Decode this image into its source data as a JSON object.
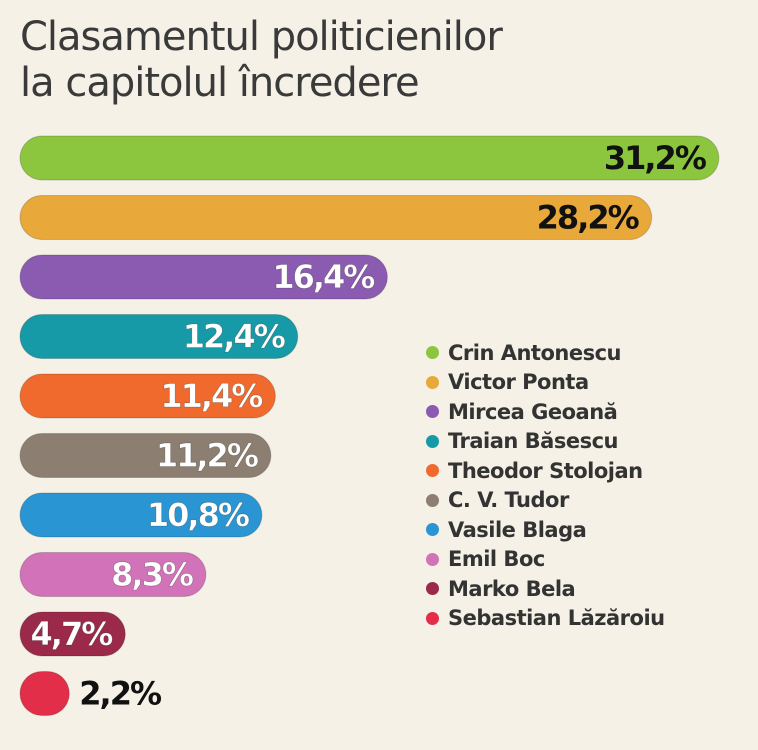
{
  "chart_data": {
    "type": "bar",
    "orientation": "horizontal",
    "title_lines": [
      "Clasamentul politicienilor",
      "la capitolul încredere"
    ],
    "categories": [
      "Crin Antonescu",
      "Victor Ponta",
      "Mircea Geoană",
      "Traian Băsescu",
      "Theodor Stolojan",
      "C. V. Tudor",
      "Vasile Blaga",
      "Emil Boc",
      "Marko Bela",
      "Sebastian Lăzăroiu"
    ],
    "values": [
      31.2,
      28.2,
      16.4,
      12.4,
      11.4,
      11.2,
      10.8,
      8.3,
      4.7,
      2.2
    ],
    "value_labels": [
      "31,2%",
      "28,2%",
      "16,4%",
      "12,4%",
      "11,4%",
      "11,2%",
      "10,8%",
      "8,3%",
      "4,7%",
      "2,2%"
    ],
    "colors": [
      "#8cc63f",
      "#e8a93a",
      "#8a5bb0",
      "#179aa8",
      "#f06a2e",
      "#8c7f71",
      "#2a95d3",
      "#d272b8",
      "#9b2a4a",
      "#e22e48"
    ],
    "label_colors": [
      "#111111",
      "#111111",
      "#ffffff",
      "#ffffff",
      "#ffffff",
      "#ffffff",
      "#ffffff",
      "#ffffff",
      "#ffffff",
      "#111111"
    ],
    "legend_position": "right",
    "grid": false
  }
}
